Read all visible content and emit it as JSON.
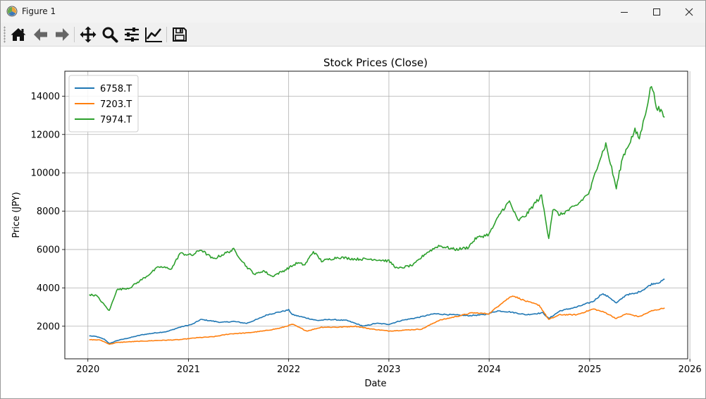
{
  "window": {
    "title": "Figure 1",
    "icon": "matplotlib-icon",
    "controls": [
      "minimize-icon",
      "maximize-icon",
      "close-icon"
    ]
  },
  "toolbar": {
    "buttons": [
      {
        "name": "home-button",
        "icon": "home-icon"
      },
      {
        "name": "back-button",
        "icon": "arrow-left-icon"
      },
      {
        "name": "forward-button",
        "icon": "arrow-right-icon"
      },
      {
        "name": "pan-button",
        "icon": "move-icon"
      },
      {
        "name": "zoom-button",
        "icon": "magnifier-icon"
      },
      {
        "name": "subplots-button",
        "icon": "sliders-icon"
      },
      {
        "name": "edit-axes-button",
        "icon": "line-chart-icon"
      },
      {
        "name": "save-button",
        "icon": "floppy-disk-icon"
      }
    ]
  },
  "chart_data": {
    "type": "line",
    "title": "Stock Prices (Close)",
    "xlabel": "Date",
    "ylabel": "Price (JPY)",
    "xlim": [
      "2019-10-09",
      "2025-12-24"
    ],
    "ylim": [
      300,
      15300
    ],
    "x_ticks": [
      "2020",
      "2021",
      "2022",
      "2023",
      "2024",
      "2025",
      "2026"
    ],
    "y_ticks": [
      2000,
      4000,
      6000,
      8000,
      10000,
      12000,
      14000
    ],
    "grid": true,
    "legend_position": "upper-left",
    "series": [
      {
        "name": "6758.T",
        "color": "#1f77b4",
        "points": [
          [
            "2020-01-06",
            1500
          ],
          [
            "2020-02-01",
            1460
          ],
          [
            "2020-03-01",
            1320
          ],
          [
            "2020-03-20",
            1090
          ],
          [
            "2020-04-15",
            1250
          ],
          [
            "2020-06-01",
            1400
          ],
          [
            "2020-07-15",
            1550
          ],
          [
            "2020-09-01",
            1650
          ],
          [
            "2020-10-15",
            1720
          ],
          [
            "2020-12-01",
            1950
          ],
          [
            "2021-01-15",
            2100
          ],
          [
            "2021-02-15",
            2350
          ],
          [
            "2021-03-15",
            2300
          ],
          [
            "2021-05-01",
            2200
          ],
          [
            "2021-06-15",
            2250
          ],
          [
            "2021-08-01",
            2150
          ],
          [
            "2021-09-15",
            2400
          ],
          [
            "2021-10-15",
            2600
          ],
          [
            "2021-11-15",
            2700
          ],
          [
            "2022-01-01",
            2850
          ],
          [
            "2022-01-15",
            2600
          ],
          [
            "2022-03-01",
            2450
          ],
          [
            "2022-04-15",
            2300
          ],
          [
            "2022-06-01",
            2350
          ],
          [
            "2022-08-01",
            2300
          ],
          [
            "2022-10-01",
            2000
          ],
          [
            "2022-11-15",
            2150
          ],
          [
            "2023-01-01",
            2100
          ],
          [
            "2023-02-15",
            2300
          ],
          [
            "2023-04-15",
            2450
          ],
          [
            "2023-06-15",
            2650
          ],
          [
            "2023-08-15",
            2600
          ],
          [
            "2023-10-15",
            2550
          ],
          [
            "2023-12-15",
            2600
          ],
          [
            "2024-02-01",
            2800
          ],
          [
            "2024-03-15",
            2750
          ],
          [
            "2024-05-15",
            2600
          ],
          [
            "2024-07-15",
            2700
          ],
          [
            "2024-08-05",
            2400
          ],
          [
            "2024-09-15",
            2800
          ],
          [
            "2024-11-15",
            3000
          ],
          [
            "2025-01-15",
            3300
          ],
          [
            "2025-02-15",
            3700
          ],
          [
            "2025-03-15",
            3500
          ],
          [
            "2025-04-08",
            3200
          ],
          [
            "2025-05-15",
            3650
          ],
          [
            "2025-06-15",
            3700
          ],
          [
            "2025-07-15",
            3900
          ],
          [
            "2025-08-15",
            4200
          ],
          [
            "2025-09-15",
            4300
          ],
          [
            "2025-10-01",
            4450
          ]
        ]
      },
      {
        "name": "7203.T",
        "color": "#ff7f0e",
        "points": [
          [
            "2020-01-06",
            1300
          ],
          [
            "2020-02-15",
            1280
          ],
          [
            "2020-03-20",
            1060
          ],
          [
            "2020-04-15",
            1150
          ],
          [
            "2020-06-15",
            1200
          ],
          [
            "2020-09-01",
            1250
          ],
          [
            "2020-12-01",
            1300
          ],
          [
            "2021-02-01",
            1400
          ],
          [
            "2021-04-01",
            1450
          ],
          [
            "2021-06-01",
            1600
          ],
          [
            "2021-08-01",
            1650
          ],
          [
            "2021-10-01",
            1750
          ],
          [
            "2021-12-01",
            1900
          ],
          [
            "2022-01-15",
            2100
          ],
          [
            "2022-03-08",
            1750
          ],
          [
            "2022-05-01",
            1950
          ],
          [
            "2022-07-01",
            1950
          ],
          [
            "2022-09-01",
            2000
          ],
          [
            "2022-11-01",
            1850
          ],
          [
            "2023-01-01",
            1750
          ],
          [
            "2023-03-01",
            1800
          ],
          [
            "2023-05-01",
            1850
          ],
          [
            "2023-07-01",
            2300
          ],
          [
            "2023-09-01",
            2500
          ],
          [
            "2023-11-01",
            2700
          ],
          [
            "2024-01-01",
            2650
          ],
          [
            "2024-02-15",
            3200
          ],
          [
            "2024-03-26",
            3600
          ],
          [
            "2024-05-15",
            3300
          ],
          [
            "2024-07-01",
            3100
          ],
          [
            "2024-08-05",
            2350
          ],
          [
            "2024-09-15",
            2600
          ],
          [
            "2024-11-15",
            2600
          ],
          [
            "2025-01-15",
            2900
          ],
          [
            "2025-03-01",
            2700
          ],
          [
            "2025-04-08",
            2400
          ],
          [
            "2025-05-15",
            2650
          ],
          [
            "2025-07-01",
            2500
          ],
          [
            "2025-08-15",
            2800
          ],
          [
            "2025-10-01",
            2950
          ]
        ]
      },
      {
        "name": "7974.T",
        "color": "#2ca02c",
        "points": [
          [
            "2020-01-06",
            3650
          ],
          [
            "2020-02-01",
            3600
          ],
          [
            "2020-03-19",
            2800
          ],
          [
            "2020-04-15",
            3900
          ],
          [
            "2020-06-01",
            4000
          ],
          [
            "2020-08-01",
            4600
          ],
          [
            "2020-09-15",
            5100
          ],
          [
            "2020-11-01",
            5000
          ],
          [
            "2020-12-01",
            5800
          ],
          [
            "2021-01-15",
            5700
          ],
          [
            "2021-02-15",
            6000
          ],
          [
            "2021-04-01",
            5500
          ],
          [
            "2021-05-15",
            5800
          ],
          [
            "2021-06-15",
            6000
          ],
          [
            "2021-08-01",
            5100
          ],
          [
            "2021-09-01",
            4700
          ],
          [
            "2021-10-01",
            4900
          ],
          [
            "2021-11-01",
            4600
          ],
          [
            "2021-12-15",
            4900
          ],
          [
            "2022-02-01",
            5300
          ],
          [
            "2022-03-01",
            5200
          ],
          [
            "2022-04-01",
            5900
          ],
          [
            "2022-05-01",
            5400
          ],
          [
            "2022-07-01",
            5600
          ],
          [
            "2022-09-01",
            5500
          ],
          [
            "2022-11-01",
            5500
          ],
          [
            "2023-01-01",
            5400
          ],
          [
            "2023-02-01",
            5000
          ],
          [
            "2023-04-01",
            5200
          ],
          [
            "2023-05-15",
            5800
          ],
          [
            "2023-07-01",
            6200
          ],
          [
            "2023-09-01",
            6000
          ],
          [
            "2023-10-15",
            6100
          ],
          [
            "2023-11-15",
            6600
          ],
          [
            "2024-01-01",
            6800
          ],
          [
            "2024-02-15",
            8000
          ],
          [
            "2024-03-15",
            8500
          ],
          [
            "2024-04-15",
            7500
          ],
          [
            "2024-05-15",
            7800
          ],
          [
            "2024-06-15",
            8400
          ],
          [
            "2024-07-10",
            8800
          ],
          [
            "2024-08-05",
            6600
          ],
          [
            "2024-08-20",
            8100
          ],
          [
            "2024-09-15",
            7800
          ],
          [
            "2024-11-15",
            8300
          ],
          [
            "2025-01-01",
            9000
          ],
          [
            "2025-02-01",
            10500
          ],
          [
            "2025-03-01",
            11500
          ],
          [
            "2025-04-08",
            9200
          ],
          [
            "2025-05-01",
            10800
          ],
          [
            "2025-06-15",
            12200
          ],
          [
            "2025-07-01",
            11800
          ],
          [
            "2025-07-15",
            12600
          ],
          [
            "2025-08-14",
            14600
          ],
          [
            "2025-09-01",
            13500
          ],
          [
            "2025-10-01",
            12900
          ]
        ]
      }
    ]
  }
}
